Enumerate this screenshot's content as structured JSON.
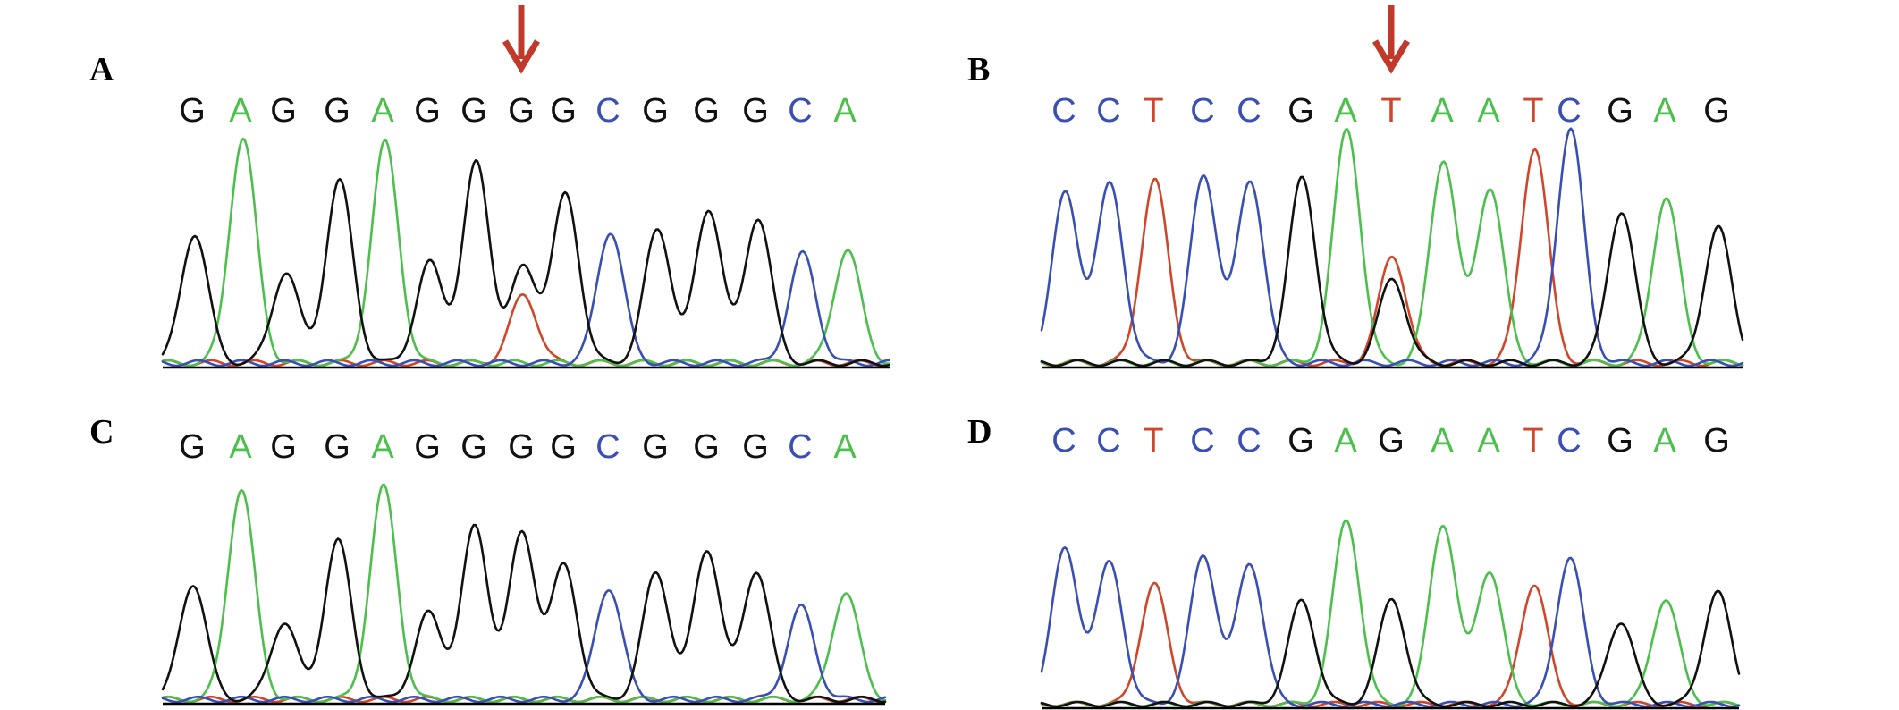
{
  "colors": {
    "A": "#4cbf4c",
    "C": "#3a4fb4",
    "G": "#111111",
    "T": "#d0462a",
    "arrow": "#c0392b"
  },
  "icons": {
    "mutation_arrow": "down-arrow-icon"
  },
  "panels": [
    {
      "label": "A",
      "sequence": [
        "G",
        "A",
        "G",
        "G",
        "A",
        "G",
        "G",
        "G",
        "G",
        "C",
        "G",
        "G",
        "G",
        "C",
        "A"
      ],
      "heights": [
        0.57,
        0.99,
        0.4,
        0.8,
        0.97,
        0.44,
        0.88,
        0.42,
        0.74,
        0.58,
        0.59,
        0.68,
        0.64,
        0.48,
        0.5
      ],
      "secondary": [
        {
          "index": 7,
          "base": "T",
          "height": 0.3
        }
      ],
      "arrow_index": 7
    },
    {
      "label": "B",
      "sequence": [
        "C",
        "C",
        "T",
        "C",
        "C",
        "G",
        "A",
        "T",
        "A",
        "A",
        "T",
        "C",
        "G",
        "A",
        "G"
      ],
      "heights": [
        0.72,
        0.76,
        0.78,
        0.8,
        0.78,
        0.79,
        1.0,
        0.46,
        0.87,
        0.75,
        0.92,
        1.0,
        0.65,
        0.71,
        0.58
      ],
      "secondary": [
        {
          "index": 7,
          "base": "G",
          "height": 0.36
        }
      ],
      "arrow_index": 7
    },
    {
      "label": "C",
      "sequence": [
        "G",
        "A",
        "G",
        "G",
        "A",
        "G",
        "G",
        "G",
        "G",
        "C",
        "G",
        "G",
        "G",
        "C",
        "A"
      ],
      "heights": [
        0.54,
        0.98,
        0.36,
        0.74,
        0.99,
        0.4,
        0.8,
        0.77,
        0.62,
        0.52,
        0.59,
        0.7,
        0.6,
        0.43,
        0.5
      ],
      "secondary": [],
      "arrow_index": null
    },
    {
      "label": "D",
      "sequence": [
        "C",
        "C",
        "T",
        "C",
        "C",
        "G",
        "A",
        "G",
        "A",
        "A",
        "T",
        "C",
        "G",
        "A",
        "G"
      ],
      "heights": [
        0.82,
        0.75,
        0.64,
        0.79,
        0.75,
        0.55,
        0.98,
        0.56,
        0.96,
        0.71,
        0.64,
        0.78,
        0.44,
        0.56,
        0.6
      ],
      "secondary": [],
      "arrow_index": null
    }
  ]
}
